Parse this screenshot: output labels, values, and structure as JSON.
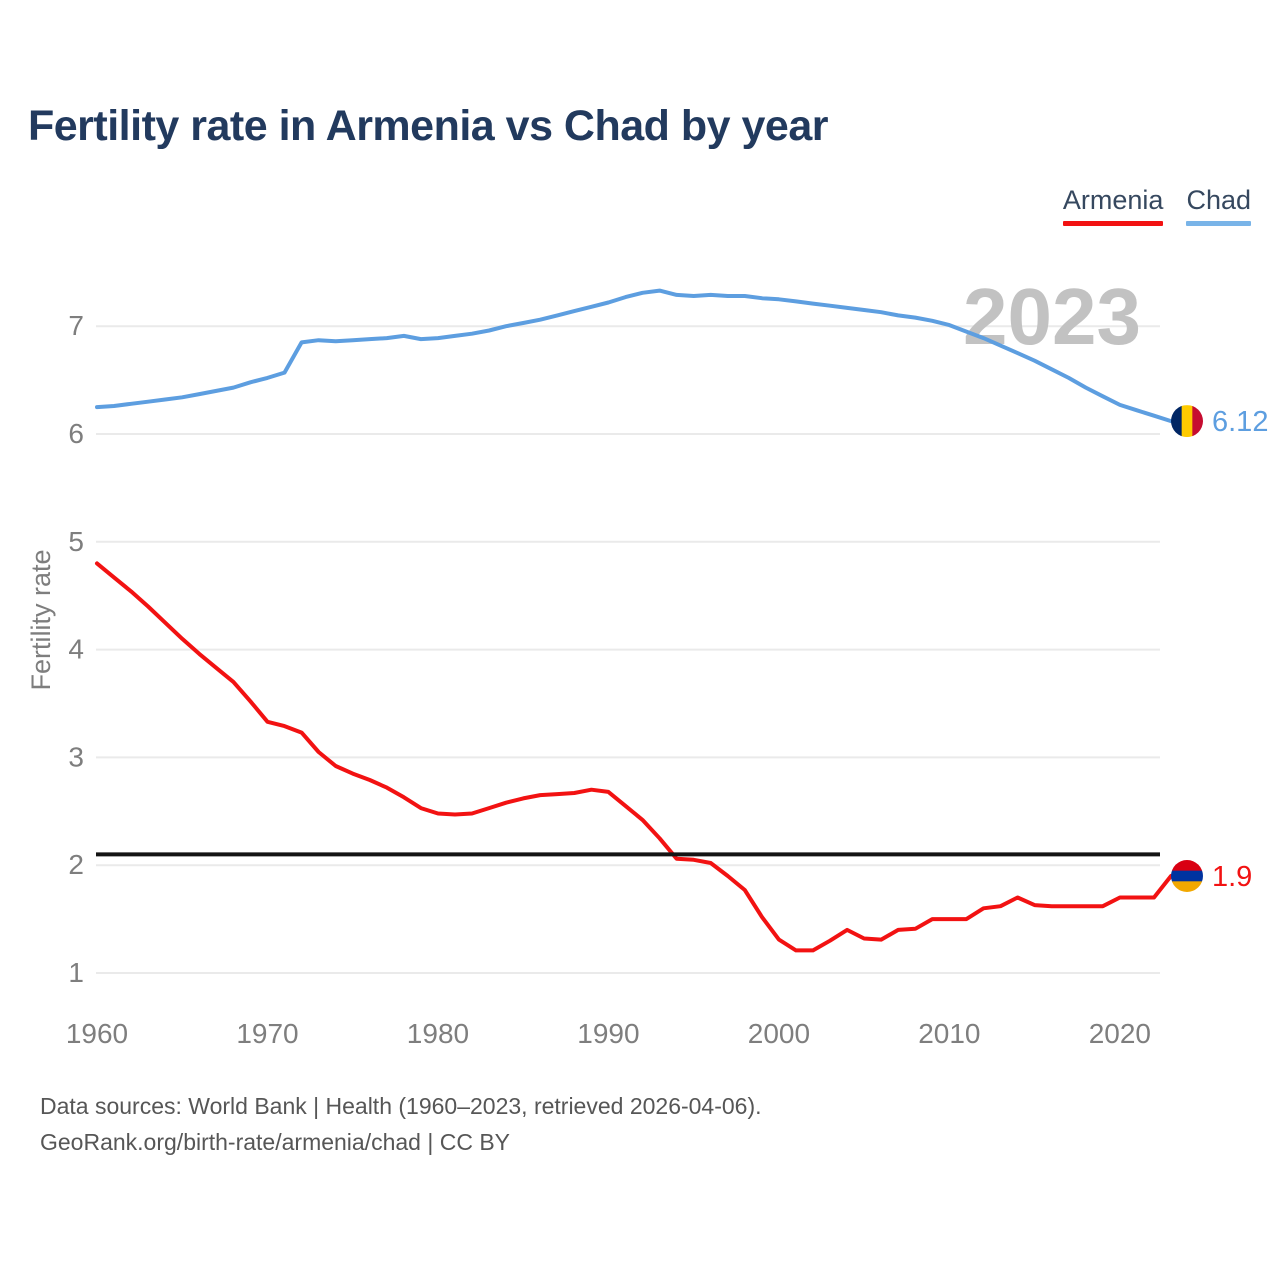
{
  "title": "Fertility rate in Armenia vs Chad by year",
  "legend": {
    "armenia": {
      "label": "Armenia",
      "color": "#f21212",
      "underline_color": "#f21212"
    },
    "chad": {
      "label": "Chad",
      "color": "#5d9ee0",
      "underline_color": "#79b4e8"
    }
  },
  "watermark": "2023",
  "end_labels": {
    "chad": {
      "value": "6.12"
    },
    "armenia": {
      "value": "1.9"
    }
  },
  "flags": {
    "chad": {
      "orientation": "vertical",
      "colors": [
        "#002664",
        "#FECB00",
        "#C60C30"
      ]
    },
    "armenia": {
      "orientation": "horizontal",
      "colors": [
        "#D90012",
        "#0033A0",
        "#F2A800"
      ]
    }
  },
  "reference_line": {
    "value": 2.1,
    "color": "#141414"
  },
  "footer": {
    "line1": "Data sources: World Bank | Health (1960–2023, retrieved 2026-04-06).",
    "line2": "GeoRank.org/birth-rate/armenia/chad | CC BY"
  },
  "chart_data": {
    "type": "line",
    "title": "Fertility rate in Armenia vs Chad by year",
    "xlabel": "",
    "ylabel": "Fertility rate",
    "xlim": [
      1960,
      2023
    ],
    "ylim": [
      0.8,
      7.6
    ],
    "x_ticks": [
      1960,
      1970,
      1980,
      1990,
      2000,
      2010,
      2020
    ],
    "y_ticks": [
      1,
      2,
      3,
      4,
      5,
      6,
      7
    ],
    "grid": true,
    "legend_position": "top-right",
    "annotations": {
      "replacement_level": 2.1,
      "year_watermark": "2023"
    },
    "x": [
      1960,
      1961,
      1962,
      1963,
      1964,
      1965,
      1966,
      1967,
      1968,
      1969,
      1970,
      1971,
      1972,
      1973,
      1974,
      1975,
      1976,
      1977,
      1978,
      1979,
      1980,
      1981,
      1982,
      1983,
      1984,
      1985,
      1986,
      1987,
      1988,
      1989,
      1990,
      1991,
      1992,
      1993,
      1994,
      1995,
      1996,
      1997,
      1998,
      1999,
      2000,
      2001,
      2002,
      2003,
      2004,
      2005,
      2006,
      2007,
      2008,
      2009,
      2010,
      2011,
      2012,
      2013,
      2014,
      2015,
      2016,
      2017,
      2018,
      2019,
      2020,
      2021,
      2022,
      2023
    ],
    "series": [
      {
        "name": "Armenia",
        "color": "#f21212",
        "end_value_label": "1.9",
        "values": [
          4.8,
          4.67,
          4.54,
          4.4,
          4.25,
          4.1,
          3.96,
          3.83,
          3.7,
          3.52,
          3.33,
          3.29,
          3.23,
          3.05,
          2.92,
          2.85,
          2.79,
          2.72,
          2.63,
          2.53,
          2.48,
          2.47,
          2.48,
          2.53,
          2.58,
          2.62,
          2.65,
          2.66,
          2.67,
          2.7,
          2.68,
          2.55,
          2.42,
          2.25,
          2.06,
          2.05,
          2.02,
          1.9,
          1.77,
          1.52,
          1.31,
          1.21,
          1.21,
          1.3,
          1.4,
          1.32,
          1.31,
          1.4,
          1.41,
          1.5,
          1.5,
          1.5,
          1.6,
          1.62,
          1.7,
          1.63,
          1.62,
          1.62,
          1.62,
          1.62,
          1.7,
          1.7,
          1.7,
          1.9
        ]
      },
      {
        "name": "Chad",
        "color": "#5d9ee0",
        "end_value_label": "6.12",
        "values": [
          6.25,
          6.26,
          6.28,
          6.3,
          6.32,
          6.34,
          6.37,
          6.4,
          6.43,
          6.48,
          6.52,
          6.57,
          6.85,
          6.87,
          6.86,
          6.87,
          6.88,
          6.89,
          6.91,
          6.88,
          6.89,
          6.91,
          6.93,
          6.96,
          7.0,
          7.03,
          7.06,
          7.1,
          7.14,
          7.18,
          7.22,
          7.27,
          7.31,
          7.33,
          7.29,
          7.28,
          7.29,
          7.28,
          7.28,
          7.26,
          7.25,
          7.23,
          7.21,
          7.19,
          7.17,
          7.15,
          7.13,
          7.1,
          7.08,
          7.05,
          7.01,
          6.95,
          6.89,
          6.82,
          6.75,
          6.68,
          6.6,
          6.52,
          6.43,
          6.35,
          6.27,
          6.22,
          6.17,
          6.12
        ]
      }
    ]
  }
}
